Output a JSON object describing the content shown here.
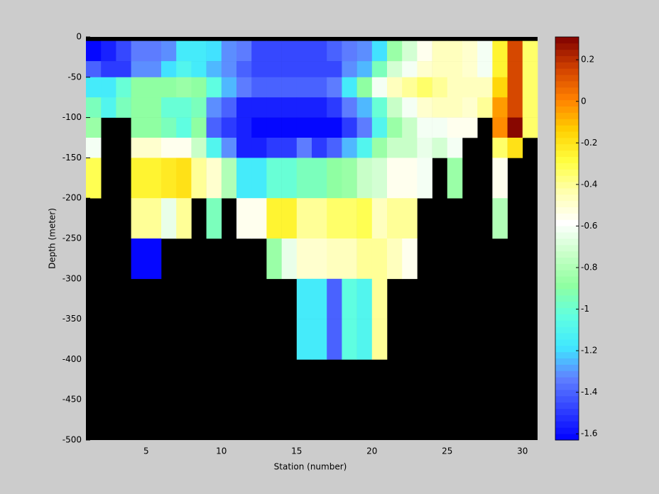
{
  "chart_data": {
    "type": "heatmap",
    "xlabel": "Station (number)",
    "ylabel": "Depth (meter)",
    "x_edges": [
      1,
      2,
      3,
      4,
      5,
      6,
      7,
      8,
      9,
      10,
      11,
      12,
      13,
      14,
      15,
      16,
      17,
      18,
      19,
      20,
      21,
      22,
      23,
      24,
      25,
      26,
      27,
      28,
      29,
      30,
      31
    ],
    "y_edges": [
      -5,
      -30,
      -50,
      -75,
      -100,
      -125,
      -150,
      -200,
      -250,
      -300,
      -350,
      -400
    ],
    "values": [
      [
        -1.6,
        -1.55,
        -1.45,
        -1.35,
        -1.35,
        -1.3,
        -1.15,
        -1.15,
        -1.2,
        -1.3,
        -1.35,
        -1.45,
        -1.45,
        -1.45,
        -1.45,
        -1.45,
        -1.4,
        -1.35,
        -1.3,
        -1.2,
        -0.85,
        -0.7,
        -0.55,
        -0.45,
        -0.45,
        -0.5,
        -0.6,
        -0.25,
        0.15,
        -0.35
      ],
      [
        -1.4,
        -1.5,
        -1.5,
        -1.3,
        -1.3,
        -1.2,
        -1.1,
        -1.15,
        -1.25,
        -1.3,
        -1.4,
        -1.45,
        -1.45,
        -1.45,
        -1.45,
        -1.45,
        -1.45,
        -1.3,
        -1.25,
        -0.95,
        -0.7,
        -0.6,
        -0.5,
        -0.45,
        -0.45,
        -0.5,
        -0.6,
        -0.25,
        0.15,
        -0.35
      ],
      [
        -1.15,
        -1.15,
        -1.0,
        -0.9,
        -0.9,
        -0.9,
        -0.85,
        -0.9,
        -1.05,
        -1.25,
        -1.35,
        -1.4,
        -1.4,
        -1.4,
        -1.4,
        -1.4,
        -1.35,
        -1.15,
        -0.9,
        -0.62,
        -0.45,
        -0.4,
        -0.35,
        -0.4,
        -0.45,
        -0.45,
        -0.45,
        -0.15,
        0.15,
        -0.35
      ],
      [
        -0.95,
        -1.1,
        -0.95,
        -0.9,
        -0.9,
        -1.0,
        -1.0,
        -0.95,
        -1.3,
        -1.4,
        -1.55,
        -1.55,
        -1.55,
        -1.55,
        -1.55,
        -1.55,
        -1.5,
        -1.35,
        -1.25,
        -1.0,
        -0.75,
        -0.6,
        -0.5,
        -0.45,
        -0.45,
        -0.5,
        -0.4,
        -0.05,
        0.15,
        -0.35
      ],
      [
        -0.85,
        null,
        null,
        -0.9,
        -0.9,
        -0.95,
        -1.05,
        -0.9,
        -1.4,
        -1.5,
        -1.55,
        -1.6,
        -1.62,
        -1.62,
        -1.62,
        -1.62,
        -1.62,
        -1.5,
        -1.35,
        -1.1,
        -0.85,
        -0.75,
        -0.6,
        -0.6,
        -0.55,
        -0.55,
        null,
        0.0,
        0.28,
        -0.35
      ],
      [
        -0.6,
        null,
        null,
        -0.5,
        -0.5,
        -0.55,
        -0.55,
        -0.75,
        -1.1,
        -1.3,
        -1.55,
        -1.55,
        -1.5,
        -1.5,
        -1.35,
        -1.5,
        -1.4,
        -1.25,
        -1.1,
        -0.85,
        -0.75,
        -0.75,
        -0.65,
        -0.7,
        -0.62,
        null,
        null,
        -0.35,
        -0.2,
        null
      ],
      [
        -0.3,
        null,
        null,
        -0.25,
        -0.25,
        -0.22,
        -0.2,
        -0.4,
        -0.5,
        -0.8,
        -1.15,
        -1.15,
        -1.0,
        -1.0,
        -0.95,
        -0.95,
        -0.9,
        -0.85,
        -0.75,
        -0.7,
        -0.55,
        -0.55,
        -0.6,
        null,
        -0.85,
        null,
        null,
        -0.55,
        null,
        null
      ],
      [
        null,
        null,
        null,
        -0.4,
        -0.4,
        -0.65,
        -0.4,
        null,
        -0.95,
        null,
        -0.55,
        -0.55,
        -0.25,
        -0.25,
        -0.4,
        -0.4,
        -0.35,
        -0.35,
        -0.3,
        -0.45,
        -0.4,
        -0.4,
        null,
        null,
        null,
        null,
        null,
        -0.8,
        null,
        null
      ],
      [
        null,
        null,
        null,
        -1.62,
        -1.62,
        null,
        null,
        null,
        null,
        null,
        null,
        null,
        -0.85,
        -0.65,
        -0.5,
        -0.5,
        -0.45,
        -0.45,
        -0.4,
        -0.4,
        -0.45,
        -0.55,
        null,
        null,
        null,
        null,
        null,
        null,
        null,
        null
      ],
      [
        null,
        null,
        null,
        null,
        null,
        null,
        null,
        null,
        null,
        null,
        null,
        null,
        null,
        null,
        -1.15,
        -1.15,
        -1.4,
        -1.05,
        -1.1,
        -0.4,
        null,
        null,
        null,
        null,
        null,
        null,
        null,
        null,
        null,
        null
      ],
      [
        null,
        null,
        null,
        null,
        null,
        null,
        null,
        null,
        null,
        null,
        null,
        null,
        null,
        null,
        -1.15,
        -1.15,
        -1.4,
        -1.05,
        -1.1,
        -0.4,
        null,
        null,
        null,
        null,
        null,
        null,
        null,
        null,
        null,
        null
      ]
    ],
    "xlim": [
      1,
      31
    ],
    "ylim": [
      -500,
      0
    ],
    "xticks": [
      5,
      10,
      15,
      20,
      25,
      30
    ],
    "yticks": [
      0,
      -50,
      -100,
      -150,
      -200,
      -250,
      -300,
      -350,
      -400,
      -450,
      -500
    ],
    "clim": [
      -1.63,
      0.31
    ],
    "cticks": [
      0.2,
      0,
      -0.2,
      -0.4,
      -0.6,
      -0.8,
      -1,
      -1.2,
      -1.4,
      -1.6
    ],
    "colormap": [
      "#0000ff",
      "#3040ff",
      "#6080ff",
      "#40e8ff",
      "#60ffe0",
      "#90ffa0",
      "#c8ffc8",
      "#ffffff",
      "#ffffb0",
      "#ffff40",
      "#ffd000",
      "#ff8000",
      "#d04000",
      "#800000"
    ],
    "colormap_levels": 64,
    "nan_color": "#000000"
  }
}
